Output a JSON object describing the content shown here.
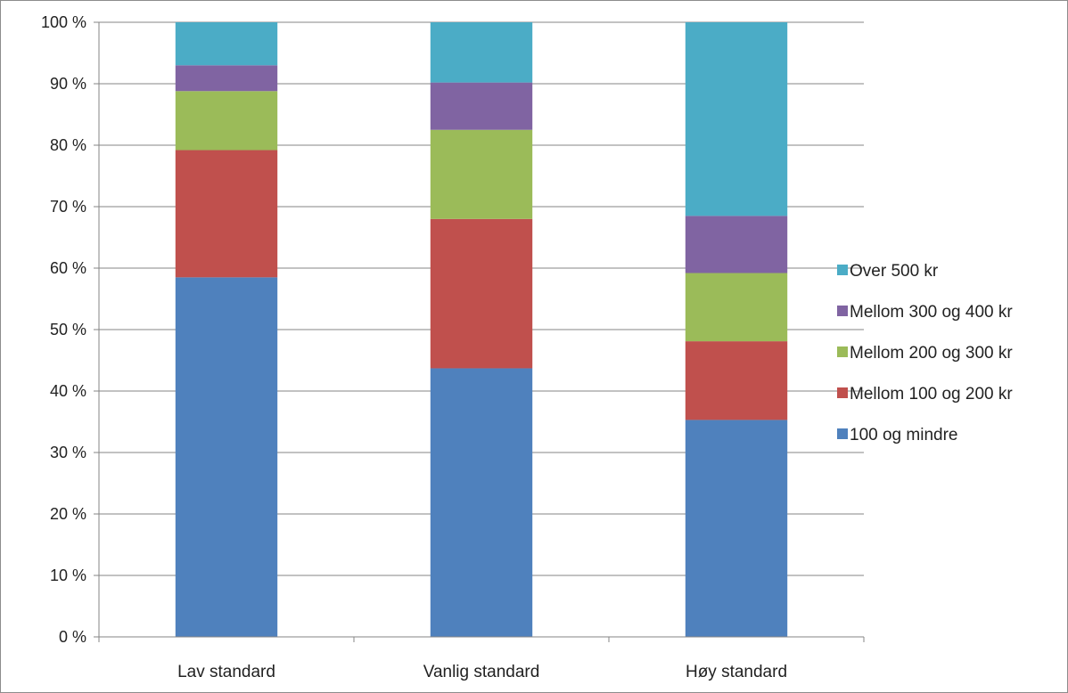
{
  "chart_data": {
    "type": "bar",
    "stacked": true,
    "percent_stacked": true,
    "categories": [
      "Lav standard",
      "Vanlig standard",
      "Høy standard"
    ],
    "series": [
      {
        "name": "100 og mindre",
        "color": "#4F81BD",
        "values": [
          58.5,
          43.7,
          35.3
        ]
      },
      {
        "name": "Mellom 100 og 200 kr",
        "color": "#C0504D",
        "values": [
          20.7,
          24.3,
          12.8
        ]
      },
      {
        "name": "Mellom 200 og 300 kr",
        "color": "#9BBB59",
        "values": [
          9.6,
          14.5,
          11.1
        ]
      },
      {
        "name": "Mellom 300 og 400 kr",
        "color": "#8064A2",
        "values": [
          4.2,
          7.7,
          9.3
        ]
      },
      {
        "name": "Over 500 kr",
        "color": "#4BACC6",
        "values": [
          7.0,
          9.8,
          31.5
        ]
      }
    ],
    "ylim": [
      0,
      100
    ],
    "yticks": [
      "0 %",
      "10 %",
      "20 %",
      "30 %",
      "40 %",
      "50 %",
      "60 %",
      "70 %",
      "80 %",
      "90 %",
      "100 %"
    ],
    "grid": true,
    "legend_position": "right",
    "legend_order": [
      "Over 500 kr",
      "Mellom 300 og 400 kr",
      "Mellom 200 og 300 kr",
      "Mellom 100 og 200 kr",
      "100 og mindre"
    ]
  }
}
